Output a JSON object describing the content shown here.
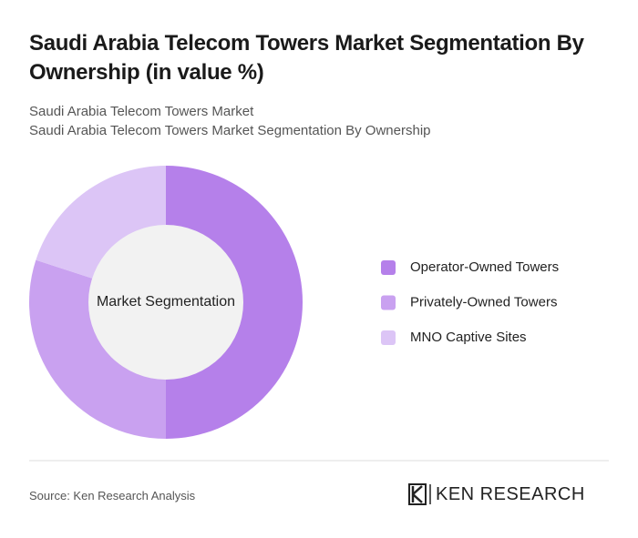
{
  "chart_data": {
    "type": "donut",
    "title": "Saudi Arabia Telecom Towers Market Segmentation By Ownership (in value %)",
    "subtitles": [
      "Saudi Arabia Telecom Towers Market",
      "Saudi Arabia Telecom Towers Market Segmentation By Ownership"
    ],
    "center_label": "Market Segmentation",
    "categories": [
      "Operator-Owned Towers",
      "Privately-Owned Towers",
      "MNO Captive Sites"
    ],
    "values": [
      50,
      30,
      20
    ],
    "colors": [
      "#b580ea",
      "#c9a1f0",
      "#dcc5f6"
    ],
    "source": "Source: Ken Research Analysis",
    "brand": "KEN RESEARCH"
  }
}
